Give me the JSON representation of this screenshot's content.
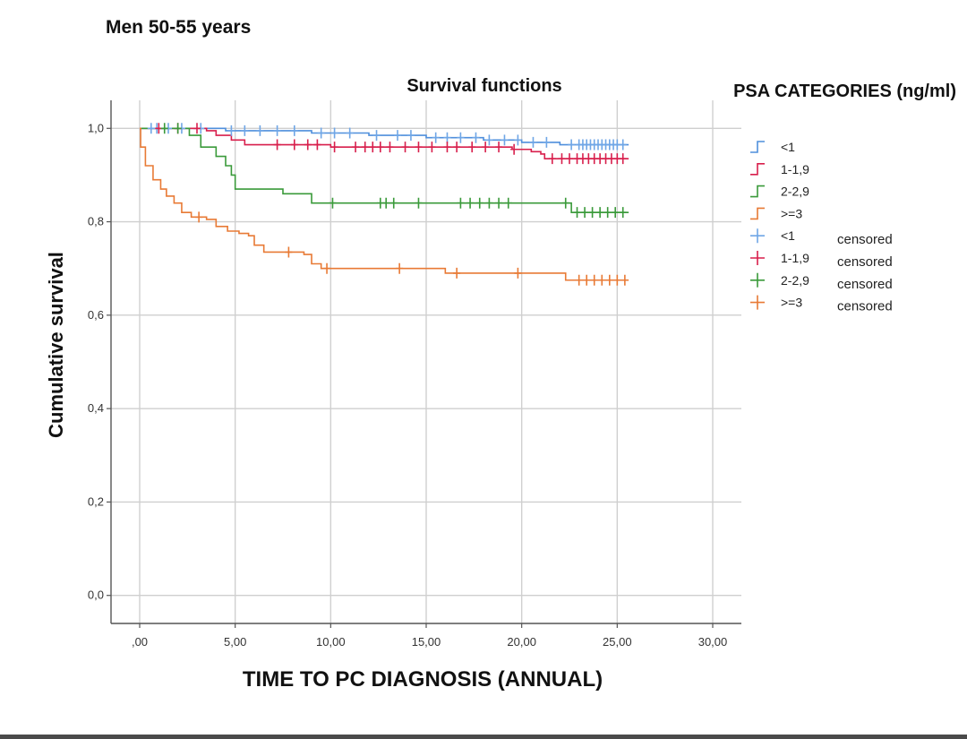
{
  "chart_data": {
    "type": "line",
    "step": true,
    "title": "Survival functions",
    "subtitle": "Men 50-55 years",
    "xlabel": "TIME TO PC DIAGNOSIS (ANNUAL)",
    "ylabel": "Cumulative survival",
    "xlim": [
      -1.5,
      31.5
    ],
    "ylim": [
      -0.06,
      1.06
    ],
    "x_ticks": [
      0,
      5,
      10,
      15,
      20,
      25,
      30
    ],
    "x_tick_labels": [
      ",00",
      "5,00",
      "10,00",
      "15,00",
      "20,00",
      "25,00",
      "30,00"
    ],
    "y_ticks": [
      0,
      0.2,
      0.4,
      0.6,
      0.8,
      1.0
    ],
    "y_tick_labels": [
      "0,0",
      "0,2",
      "0,4",
      "0,6",
      "0,8",
      "1,0"
    ],
    "grid": true,
    "legend_title": "PSA CATEGORIES (ng/ml)",
    "legend_position": "right",
    "legend": [
      {
        "label": "<1",
        "kind": "line"
      },
      {
        "label": "1-1,9",
        "kind": "line"
      },
      {
        "label": "2-2,9",
        "kind": "line"
      },
      {
        "label": ">=3",
        "kind": "line"
      },
      {
        "label": "<1",
        "kind": "censored",
        "note": "censored"
      },
      {
        "label": "1-1,9",
        "kind": "censored",
        "note": "censored"
      },
      {
        "label": "2-2,9",
        "kind": "censored",
        "note": "censored"
      },
      {
        "label": ">=3",
        "kind": "censored",
        "note": "censored"
      }
    ],
    "series": [
      {
        "name": "<1",
        "color": "#4f8fdc",
        "censor_color": "#6fa6e6",
        "points": [
          [
            0,
            1.0
          ],
          [
            3.5,
            1.0
          ],
          [
            4.5,
            0.995
          ],
          [
            9,
            0.99
          ],
          [
            12,
            0.985
          ],
          [
            15,
            0.98
          ],
          [
            18,
            0.975
          ],
          [
            20,
            0.97
          ],
          [
            22,
            0.965
          ],
          [
            25.6,
            0.965
          ]
        ],
        "censored": [
          0.6,
          0.9,
          1.5,
          2.2,
          3.2,
          4.8,
          5.5,
          6.3,
          7.2,
          8.1,
          9.5,
          10.2,
          11,
          12.4,
          13.5,
          14.2,
          15.5,
          16.1,
          16.8,
          17.6,
          18.3,
          19.1,
          19.8,
          20.6,
          21.3,
          22.6,
          23.0,
          23.2,
          23.4,
          23.6,
          23.8,
          24.0,
          24.2,
          24.4,
          24.6,
          24.8,
          25.0,
          25.3
        ]
      },
      {
        "name": "1-1,9",
        "color": "#d81f4c",
        "censor_color": "#d81f4c",
        "points": [
          [
            0,
            1.0
          ],
          [
            2.5,
            1.0
          ],
          [
            3.5,
            0.995
          ],
          [
            4,
            0.985
          ],
          [
            4.8,
            0.975
          ],
          [
            5.5,
            0.965
          ],
          [
            10,
            0.96
          ],
          [
            19.5,
            0.955
          ],
          [
            20.5,
            0.95
          ],
          [
            21,
            0.945
          ],
          [
            21.2,
            0.935
          ],
          [
            25.6,
            0.935
          ]
        ],
        "censored": [
          1.0,
          2.0,
          3.0,
          7.2,
          8.1,
          8.8,
          9.3,
          10.2,
          11.3,
          11.8,
          12.2,
          12.6,
          13.1,
          13.9,
          14.6,
          15.3,
          16.1,
          16.6,
          17.4,
          18.1,
          18.8,
          19.6,
          21.6,
          22.1,
          22.5,
          22.9,
          23.2,
          23.5,
          23.8,
          24.1,
          24.4,
          24.7,
          25.0,
          25.3
        ]
      },
      {
        "name": "2-2,9",
        "color": "#3a9a3a",
        "censor_color": "#3a9a3a",
        "points": [
          [
            0,
            1.0
          ],
          [
            2.2,
            1.0
          ],
          [
            2.6,
            0.985
          ],
          [
            3.2,
            0.96
          ],
          [
            4,
            0.94
          ],
          [
            4.5,
            0.92
          ],
          [
            4.8,
            0.9
          ],
          [
            5,
            0.87
          ],
          [
            7,
            0.87
          ],
          [
            7.5,
            0.86
          ],
          [
            9,
            0.84
          ],
          [
            22.5,
            0.84
          ],
          [
            22.6,
            0.82
          ],
          [
            25.6,
            0.82
          ]
        ],
        "censored": [
          1.3,
          2.0,
          10.1,
          12.6,
          12.9,
          13.3,
          14.6,
          16.8,
          17.3,
          17.8,
          18.3,
          18.8,
          19.3,
          22.3,
          22.9,
          23.3,
          23.7,
          24.1,
          24.5,
          24.9,
          25.3
        ]
      },
      {
        "name": ">=3",
        "color": "#e87a35",
        "censor_color": "#e87a35",
        "points": [
          [
            0,
            1.0
          ],
          [
            0.05,
            0.96
          ],
          [
            0.3,
            0.92
          ],
          [
            0.7,
            0.89
          ],
          [
            1.1,
            0.87
          ],
          [
            1.4,
            0.855
          ],
          [
            1.8,
            0.84
          ],
          [
            2.2,
            0.82
          ],
          [
            2.7,
            0.81
          ],
          [
            3.5,
            0.805
          ],
          [
            4,
            0.79
          ],
          [
            4.6,
            0.78
          ],
          [
            5.2,
            0.775
          ],
          [
            5.7,
            0.77
          ],
          [
            6,
            0.75
          ],
          [
            6.5,
            0.735
          ],
          [
            8.6,
            0.73
          ],
          [
            9,
            0.71
          ],
          [
            9.5,
            0.7
          ],
          [
            15.5,
            0.7
          ],
          [
            16,
            0.69
          ],
          [
            22,
            0.69
          ],
          [
            22.3,
            0.675
          ],
          [
            25.6,
            0.675
          ]
        ],
        "censored": [
          3.1,
          7.8,
          9.8,
          13.6,
          16.6,
          19.8,
          23.0,
          23.4,
          23.8,
          24.2,
          24.6,
          25.0,
          25.4
        ]
      }
    ]
  }
}
